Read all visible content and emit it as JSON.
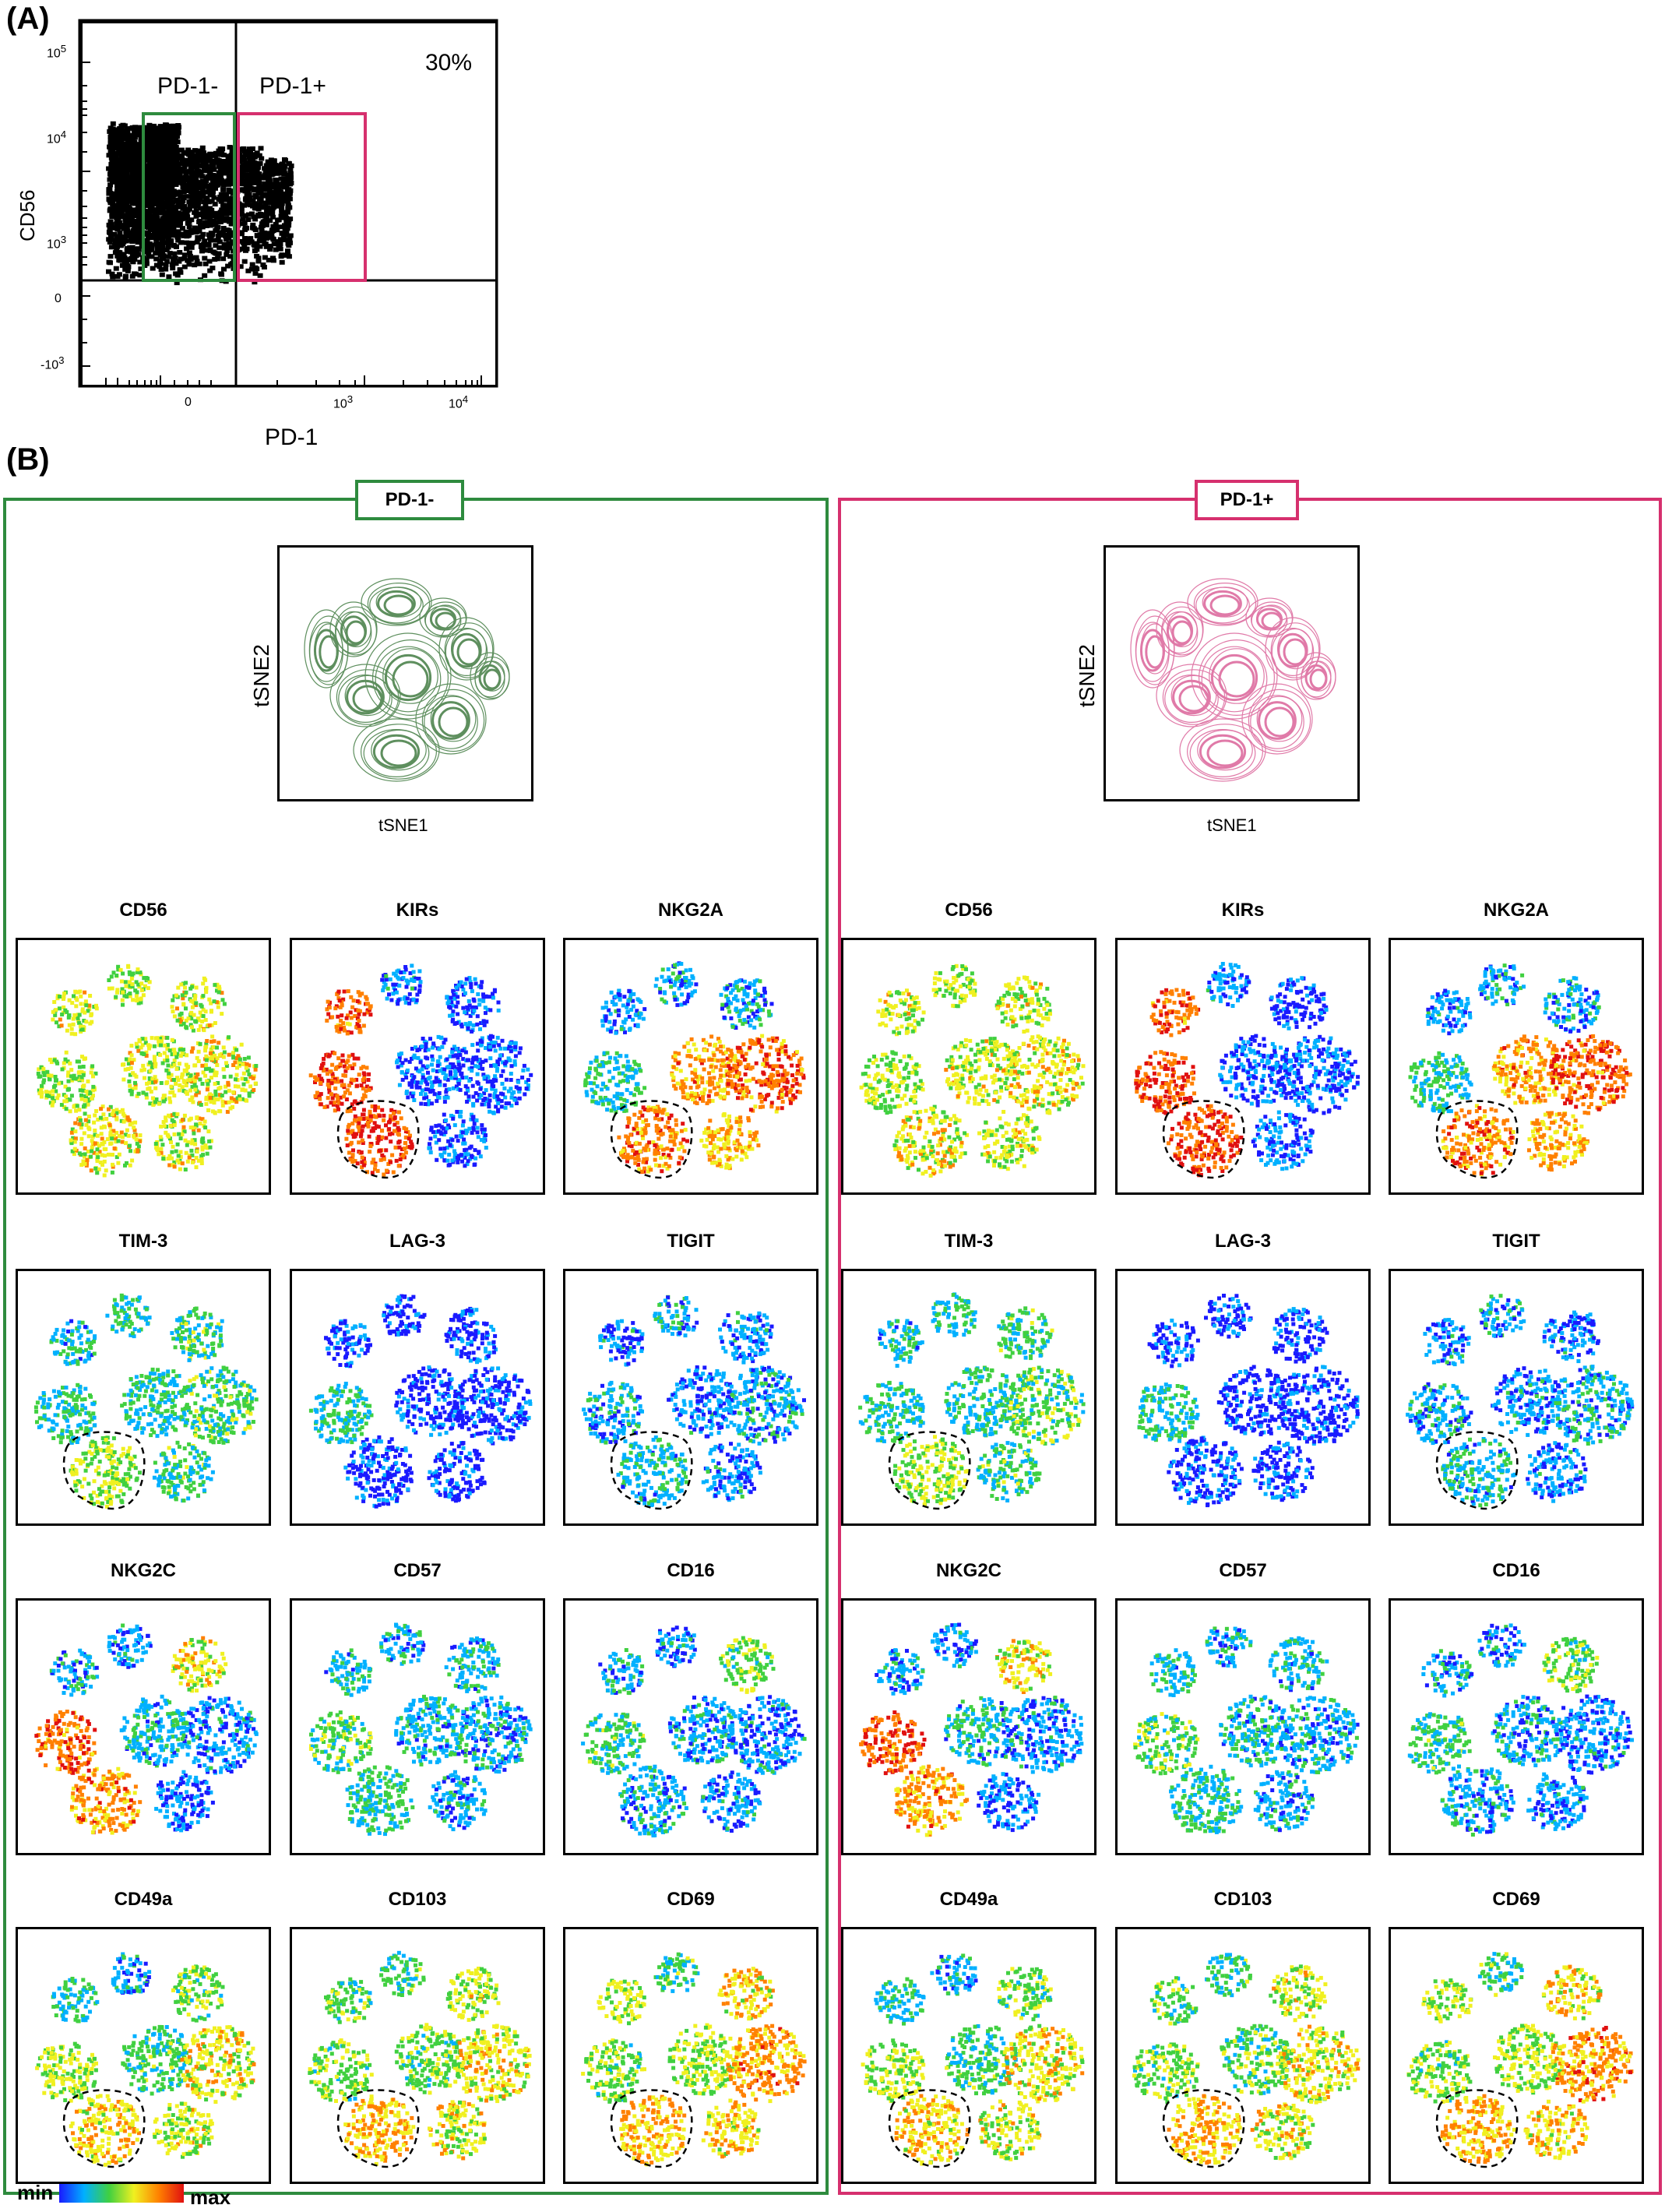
{
  "panel_a": {
    "letter": "(A)",
    "x_axis_label": "PD-1",
    "y_axis_label": "CD56",
    "gate_neg_label": "PD-1-",
    "gate_pos_label": "PD-1+",
    "percent_label": "30%",
    "gate_neg_color": "#2e8b3e",
    "gate_pos_color": "#d6306e"
  },
  "panel_b": {
    "letter": "(B)",
    "groups": [
      {
        "label": "PD-1-",
        "color": "#2e8b3e",
        "contour_color": "#5e8f5e"
      },
      {
        "label": "PD-1+",
        "color": "#d6306e",
        "contour_color": "#e07aa8"
      }
    ],
    "tsne_xlabel": "tSNE1",
    "tsne_ylabel": "tSNE2",
    "markers": [
      "CD56",
      "KIRs",
      "NKG2A",
      "TIM-3",
      "LAG-3",
      "TIGIT",
      "NKG2C",
      "CD57",
      "CD16",
      "CD49a",
      "CD103",
      "CD69"
    ],
    "colorbar": {
      "min_label": "min",
      "max_label": "max",
      "colors": [
        "#1a1aff",
        "#00b0ff",
        "#40d040",
        "#f0f020",
        "#ff8000",
        "#e01010"
      ]
    }
  },
  "chart_data": [
    {
      "type": "scatter",
      "title": "",
      "xlabel": "PD-1",
      "ylabel": "CD56",
      "x_ticks": [
        "0",
        "10^3",
        "10^4"
      ],
      "y_ticks": [
        "-10^3",
        "0",
        "10^3",
        "10^4",
        "10^5"
      ],
      "gates": [
        {
          "name": "PD-1-",
          "color": "#2e8b3e"
        },
        {
          "name": "PD-1+",
          "color": "#d6306e"
        }
      ],
      "annotations": [
        "30%"
      ]
    },
    {
      "type": "heatmap",
      "description_source": "tSNE feature plots",
      "groups": [
        "PD-1-",
        "PD-1+"
      ],
      "markers": [
        "CD56",
        "KIRs",
        "NKG2A",
        "TIM-3",
        "LAG-3",
        "TIGIT",
        "NKG2C",
        "CD57",
        "CD16",
        "CD49a",
        "CD103",
        "CD69"
      ],
      "xlabel": "tSNE1",
      "ylabel": "tSNE2",
      "scale": [
        "min",
        "max"
      ]
    }
  ]
}
